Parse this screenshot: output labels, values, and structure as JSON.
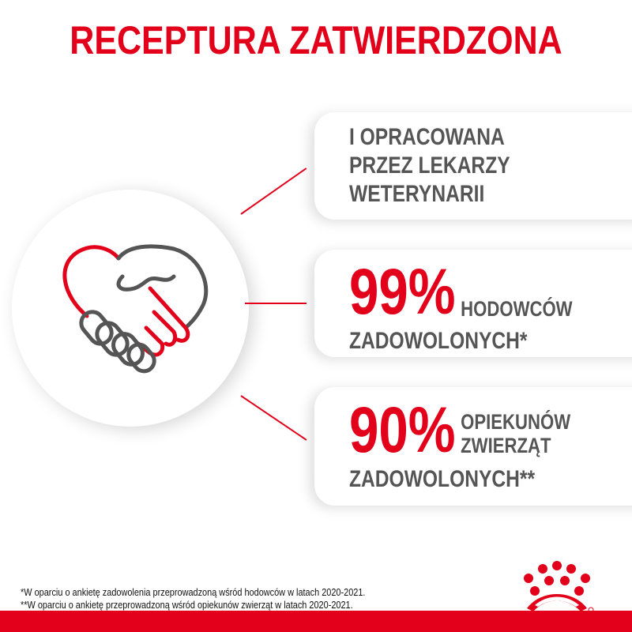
{
  "title": "RECEPTURA ZATWIERDZONA",
  "icon": "handshake-heart-icon",
  "colors": {
    "accent": "#e2001a",
    "text": "#555555"
  },
  "cards": [
    {
      "lines": [
        "I OPRACOWANA",
        "PRZEZ LEKARZY",
        "WETERYNARII"
      ]
    },
    {
      "percent": "99%",
      "line1": "HODOWCÓW",
      "line2": "ZADOWOLONYCH*"
    },
    {
      "percent": "90%",
      "line1": "OPIEKUNÓW",
      "line1b": "ZWIERZĄT",
      "line2": "ZADOWOLONYCH**"
    }
  ],
  "footnotes": [
    "*W oparciu o ankietę zadowolenia przeprowadzoną wśród hodowców w latach 2020-2021.",
    "**W oparciu o ankietę przeprowadzoną wśród opiekunów zwierząt w latach 2020-2021."
  ],
  "logo": "royal-canin-crown-logo"
}
